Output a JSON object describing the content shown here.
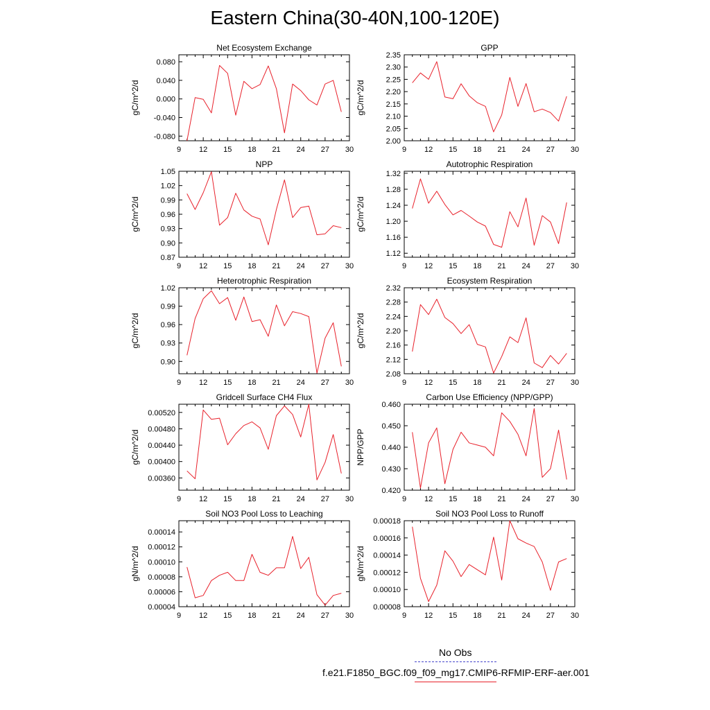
{
  "title": "Eastern China(30-40N,100-120E)",
  "legend": {
    "obs_label": "No Obs",
    "obs_color": "#4444cc",
    "model_label": "f.e21.F1850_BGC.f09_f09_mg17.CMIP6-RFMIP-ERF-aer.001",
    "model_color": "#e8202a"
  },
  "chart_data": [
    {
      "type": "line",
      "title": "Net Ecosystem Exchange",
      "ylabel": "gC/m^2/d",
      "xlim": [
        9,
        30
      ],
      "xticks": [
        9,
        12,
        15,
        18,
        21,
        24,
        27,
        30
      ],
      "ylim": [
        -0.09,
        0.095
      ],
      "yticks": [
        -0.08,
        -0.04,
        0.0,
        0.04,
        0.08
      ],
      "ytick_labels": [
        "-0.080",
        "-0.040",
        "0.000",
        "0.040",
        "0.080"
      ],
      "x": [
        10,
        11,
        12,
        13,
        14,
        15,
        16,
        17,
        18,
        19,
        20,
        21,
        22,
        23,
        24,
        25,
        26,
        27,
        28,
        29
      ],
      "values": [
        -0.09,
        0.003,
        -0.001,
        -0.03,
        0.072,
        0.055,
        -0.035,
        0.038,
        0.022,
        0.031,
        0.071,
        0.022,
        -0.073,
        0.032,
        0.018,
        -0.002,
        -0.013,
        0.032,
        0.04,
        -0.028
      ]
    },
    {
      "type": "line",
      "title": "GPP",
      "ylabel": "gC/m^2/d",
      "xlim": [
        9,
        30
      ],
      "xticks": [
        9,
        12,
        15,
        18,
        21,
        24,
        27,
        30
      ],
      "ylim": [
        2.0,
        2.35
      ],
      "yticks": [
        2.0,
        2.05,
        2.1,
        2.15,
        2.2,
        2.25,
        2.3,
        2.35
      ],
      "ytick_labels": [
        "2.00",
        "2.05",
        "2.10",
        "2.15",
        "2.20",
        "2.25",
        "2.30",
        "2.35"
      ],
      "x": [
        10,
        11,
        12,
        13,
        14,
        15,
        16,
        17,
        18,
        19,
        20,
        21,
        22,
        23,
        24,
        25,
        26,
        27,
        28,
        29
      ],
      "values": [
        2.236,
        2.276,
        2.25,
        2.322,
        2.178,
        2.171,
        2.232,
        2.183,
        2.155,
        2.14,
        2.036,
        2.105,
        2.258,
        2.14,
        2.233,
        2.118,
        2.129,
        2.115,
        2.08,
        2.181
      ]
    },
    {
      "type": "line",
      "title": "NPP",
      "ylabel": "gC/m^2/d",
      "xlim": [
        9,
        30
      ],
      "xticks": [
        9,
        12,
        15,
        18,
        21,
        24,
        27,
        30
      ],
      "ylim": [
        0.87,
        1.05
      ],
      "yticks": [
        0.87,
        0.9,
        0.93,
        0.96,
        0.99,
        1.02,
        1.05
      ],
      "ytick_labels": [
        "0.87",
        "0.90",
        "0.93",
        "0.96",
        "0.99",
        "1.02",
        "1.05"
      ],
      "x": [
        10,
        11,
        12,
        13,
        14,
        15,
        16,
        17,
        18,
        19,
        20,
        21,
        22,
        23,
        24,
        25,
        26,
        27,
        28,
        29
      ],
      "values": [
        1.003,
        0.97,
        1.005,
        1.049,
        0.937,
        0.953,
        1.004,
        0.969,
        0.956,
        0.95,
        0.896,
        0.97,
        1.032,
        0.953,
        0.974,
        0.977,
        0.917,
        0.919,
        0.936,
        0.932
      ]
    },
    {
      "type": "line",
      "title": "Autotrophic Respiration",
      "ylabel": "gC/m^2/d",
      "xlim": [
        9,
        30
      ],
      "xticks": [
        9,
        12,
        15,
        18,
        21,
        24,
        27,
        30
      ],
      "ylim": [
        1.11,
        1.325
      ],
      "yticks": [
        1.12,
        1.16,
        1.2,
        1.24,
        1.28,
        1.32
      ],
      "ytick_labels": [
        "1.12",
        "1.16",
        "1.20",
        "1.24",
        "1.28",
        "1.32"
      ],
      "x": [
        10,
        11,
        12,
        13,
        14,
        15,
        16,
        17,
        18,
        19,
        20,
        21,
        22,
        23,
        24,
        25,
        26,
        27,
        28,
        29
      ],
      "values": [
        1.232,
        1.306,
        1.245,
        1.275,
        1.242,
        1.216,
        1.227,
        1.213,
        1.198,
        1.188,
        1.142,
        1.135,
        1.224,
        1.186,
        1.258,
        1.14,
        1.214,
        1.198,
        1.144,
        1.247
      ]
    },
    {
      "type": "line",
      "title": "Heterotrophic Respiration",
      "ylabel": "gC/m^2/d",
      "xlim": [
        9,
        30
      ],
      "xticks": [
        9,
        12,
        15,
        18,
        21,
        24,
        27,
        30
      ],
      "ylim": [
        0.88,
        1.02
      ],
      "yticks": [
        0.9,
        0.93,
        0.96,
        0.99,
        1.02
      ],
      "ytick_labels": [
        "0.90",
        "0.93",
        "0.96",
        "0.99",
        "1.02"
      ],
      "x": [
        10,
        11,
        12,
        13,
        14,
        15,
        16,
        17,
        18,
        19,
        20,
        21,
        22,
        23,
        24,
        25,
        26,
        27,
        28,
        29
      ],
      "values": [
        0.91,
        0.97,
        1.002,
        1.015,
        0.994,
        1.004,
        0.967,
        1.005,
        0.965,
        0.968,
        0.941,
        0.992,
        0.958,
        0.981,
        0.978,
        0.973,
        0.881,
        0.938,
        0.963,
        0.892
      ]
    },
    {
      "type": "line",
      "title": "Ecosystem Respiration",
      "ylabel": "gC/m^2/d",
      "xlim": [
        9,
        30
      ],
      "xticks": [
        9,
        12,
        15,
        18,
        21,
        24,
        27,
        30
      ],
      "ylim": [
        2.08,
        2.32
      ],
      "yticks": [
        2.08,
        2.12,
        2.16,
        2.2,
        2.24,
        2.28,
        2.32
      ],
      "ytick_labels": [
        "2.08",
        "2.12",
        "2.16",
        "2.20",
        "2.24",
        "2.28",
        "2.32"
      ],
      "x": [
        10,
        11,
        12,
        13,
        14,
        15,
        16,
        17,
        18,
        19,
        20,
        21,
        22,
        23,
        24,
        25,
        26,
        27,
        28,
        29
      ],
      "values": [
        2.142,
        2.273,
        2.245,
        2.288,
        2.237,
        2.22,
        2.192,
        2.217,
        2.162,
        2.155,
        2.082,
        2.128,
        2.183,
        2.167,
        2.236,
        2.11,
        2.097,
        2.131,
        2.107,
        2.137
      ]
    },
    {
      "type": "line",
      "title": "Gridcell Surface CH4 Flux",
      "ylabel": "gC/m^2/d",
      "xlim": [
        9,
        30
      ],
      "xticks": [
        9,
        12,
        15,
        18,
        21,
        24,
        27,
        30
      ],
      "ylim": [
        0.0033,
        0.0054
      ],
      "yticks": [
        0.0036,
        0.004,
        0.0044,
        0.0048,
        0.0052
      ],
      "ytick_labels": [
        "0.00360",
        "0.00400",
        "0.00440",
        "0.00480",
        "0.00520"
      ],
      "x": [
        10,
        11,
        12,
        13,
        14,
        15,
        16,
        17,
        18,
        19,
        20,
        21,
        22,
        23,
        24,
        25,
        26,
        27,
        28,
        29
      ],
      "values": [
        0.00377,
        0.00358,
        0.00526,
        0.00503,
        0.00506,
        0.00441,
        0.00468,
        0.00488,
        0.00497,
        0.00482,
        0.0043,
        0.00512,
        0.00536,
        0.00515,
        0.0046,
        0.00542,
        0.00355,
        0.00398,
        0.00466,
        0.00371
      ]
    },
    {
      "type": "line",
      "title": "Carbon Use Efficiency (NPP/GPP)",
      "ylabel": "NPP/GPP",
      "xlim": [
        9,
        30
      ],
      "xticks": [
        9,
        12,
        15,
        18,
        21,
        24,
        27,
        30
      ],
      "ylim": [
        0.42,
        0.46
      ],
      "yticks": [
        0.42,
        0.43,
        0.44,
        0.45,
        0.46
      ],
      "ytick_labels": [
        "0.420",
        "0.430",
        "0.440",
        "0.450",
        "0.460"
      ],
      "x": [
        10,
        11,
        12,
        13,
        14,
        15,
        16,
        17,
        18,
        19,
        20,
        21,
        22,
        23,
        24,
        25,
        26,
        27,
        28,
        29
      ],
      "values": [
        0.447,
        0.421,
        0.442,
        0.449,
        0.423,
        0.439,
        0.447,
        0.442,
        0.441,
        0.44,
        0.436,
        0.456,
        0.452,
        0.446,
        0.436,
        0.458,
        0.426,
        0.43,
        0.448,
        0.425
      ]
    },
    {
      "type": "line",
      "title": "Soil NO3 Pool Loss to Leaching",
      "ylabel": "gN/m^2/d",
      "xlim": [
        9,
        30
      ],
      "xticks": [
        9,
        12,
        15,
        18,
        21,
        24,
        27,
        30
      ],
      "ylim": [
        4e-05,
        0.000155
      ],
      "yticks": [
        4e-05,
        6e-05,
        8e-05,
        0.0001,
        0.00012,
        0.00014
      ],
      "ytick_labels": [
        "0.00004",
        "0.00006",
        "0.00008",
        "0.00010",
        "0.00012",
        "0.00014"
      ],
      "x": [
        10,
        11,
        12,
        13,
        14,
        15,
        16,
        17,
        18,
        19,
        20,
        21,
        22,
        23,
        24,
        25,
        26,
        27,
        28,
        29
      ],
      "values": [
        9.3e-05,
        5.2e-05,
        5.5e-05,
        7.5e-05,
        8.2e-05,
        8.6e-05,
        7.5e-05,
        7.5e-05,
        0.00011,
        8.6e-05,
        8.2e-05,
        9.2e-05,
        9.2e-05,
        0.000134,
        9.1e-05,
        0.000106,
        5.6e-05,
        4.2e-05,
        5.5e-05,
        5.8e-05
      ]
    },
    {
      "type": "line",
      "title": "Soil NO3 Pool Loss to Runoff",
      "ylabel": "gN/m^2/d",
      "xlim": [
        9,
        30
      ],
      "xticks": [
        9,
        12,
        15,
        18,
        21,
        24,
        27,
        30
      ],
      "ylim": [
        8e-05,
        0.00018
      ],
      "yticks": [
        8e-05,
        0.0001,
        0.00012,
        0.00014,
        0.00016,
        0.00018
      ],
      "ytick_labels": [
        "0.00008",
        "0.00010",
        "0.00012",
        "0.00014",
        "0.00016",
        "0.00018"
      ],
      "x": [
        10,
        11,
        12,
        13,
        14,
        15,
        16,
        17,
        18,
        19,
        20,
        21,
        22,
        23,
        24,
        25,
        26,
        27,
        28,
        29
      ],
      "values": [
        0.000173,
        0.000113,
        8.6e-05,
        0.000105,
        0.000145,
        0.000133,
        0.000115,
        0.000129,
        0.000123,
        0.000117,
        0.000161,
        0.000111,
        0.000181,
        0.000159,
        0.000154,
        0.00015,
        0.000132,
        9.9e-05,
        0.000132,
        0.000136
      ]
    }
  ]
}
